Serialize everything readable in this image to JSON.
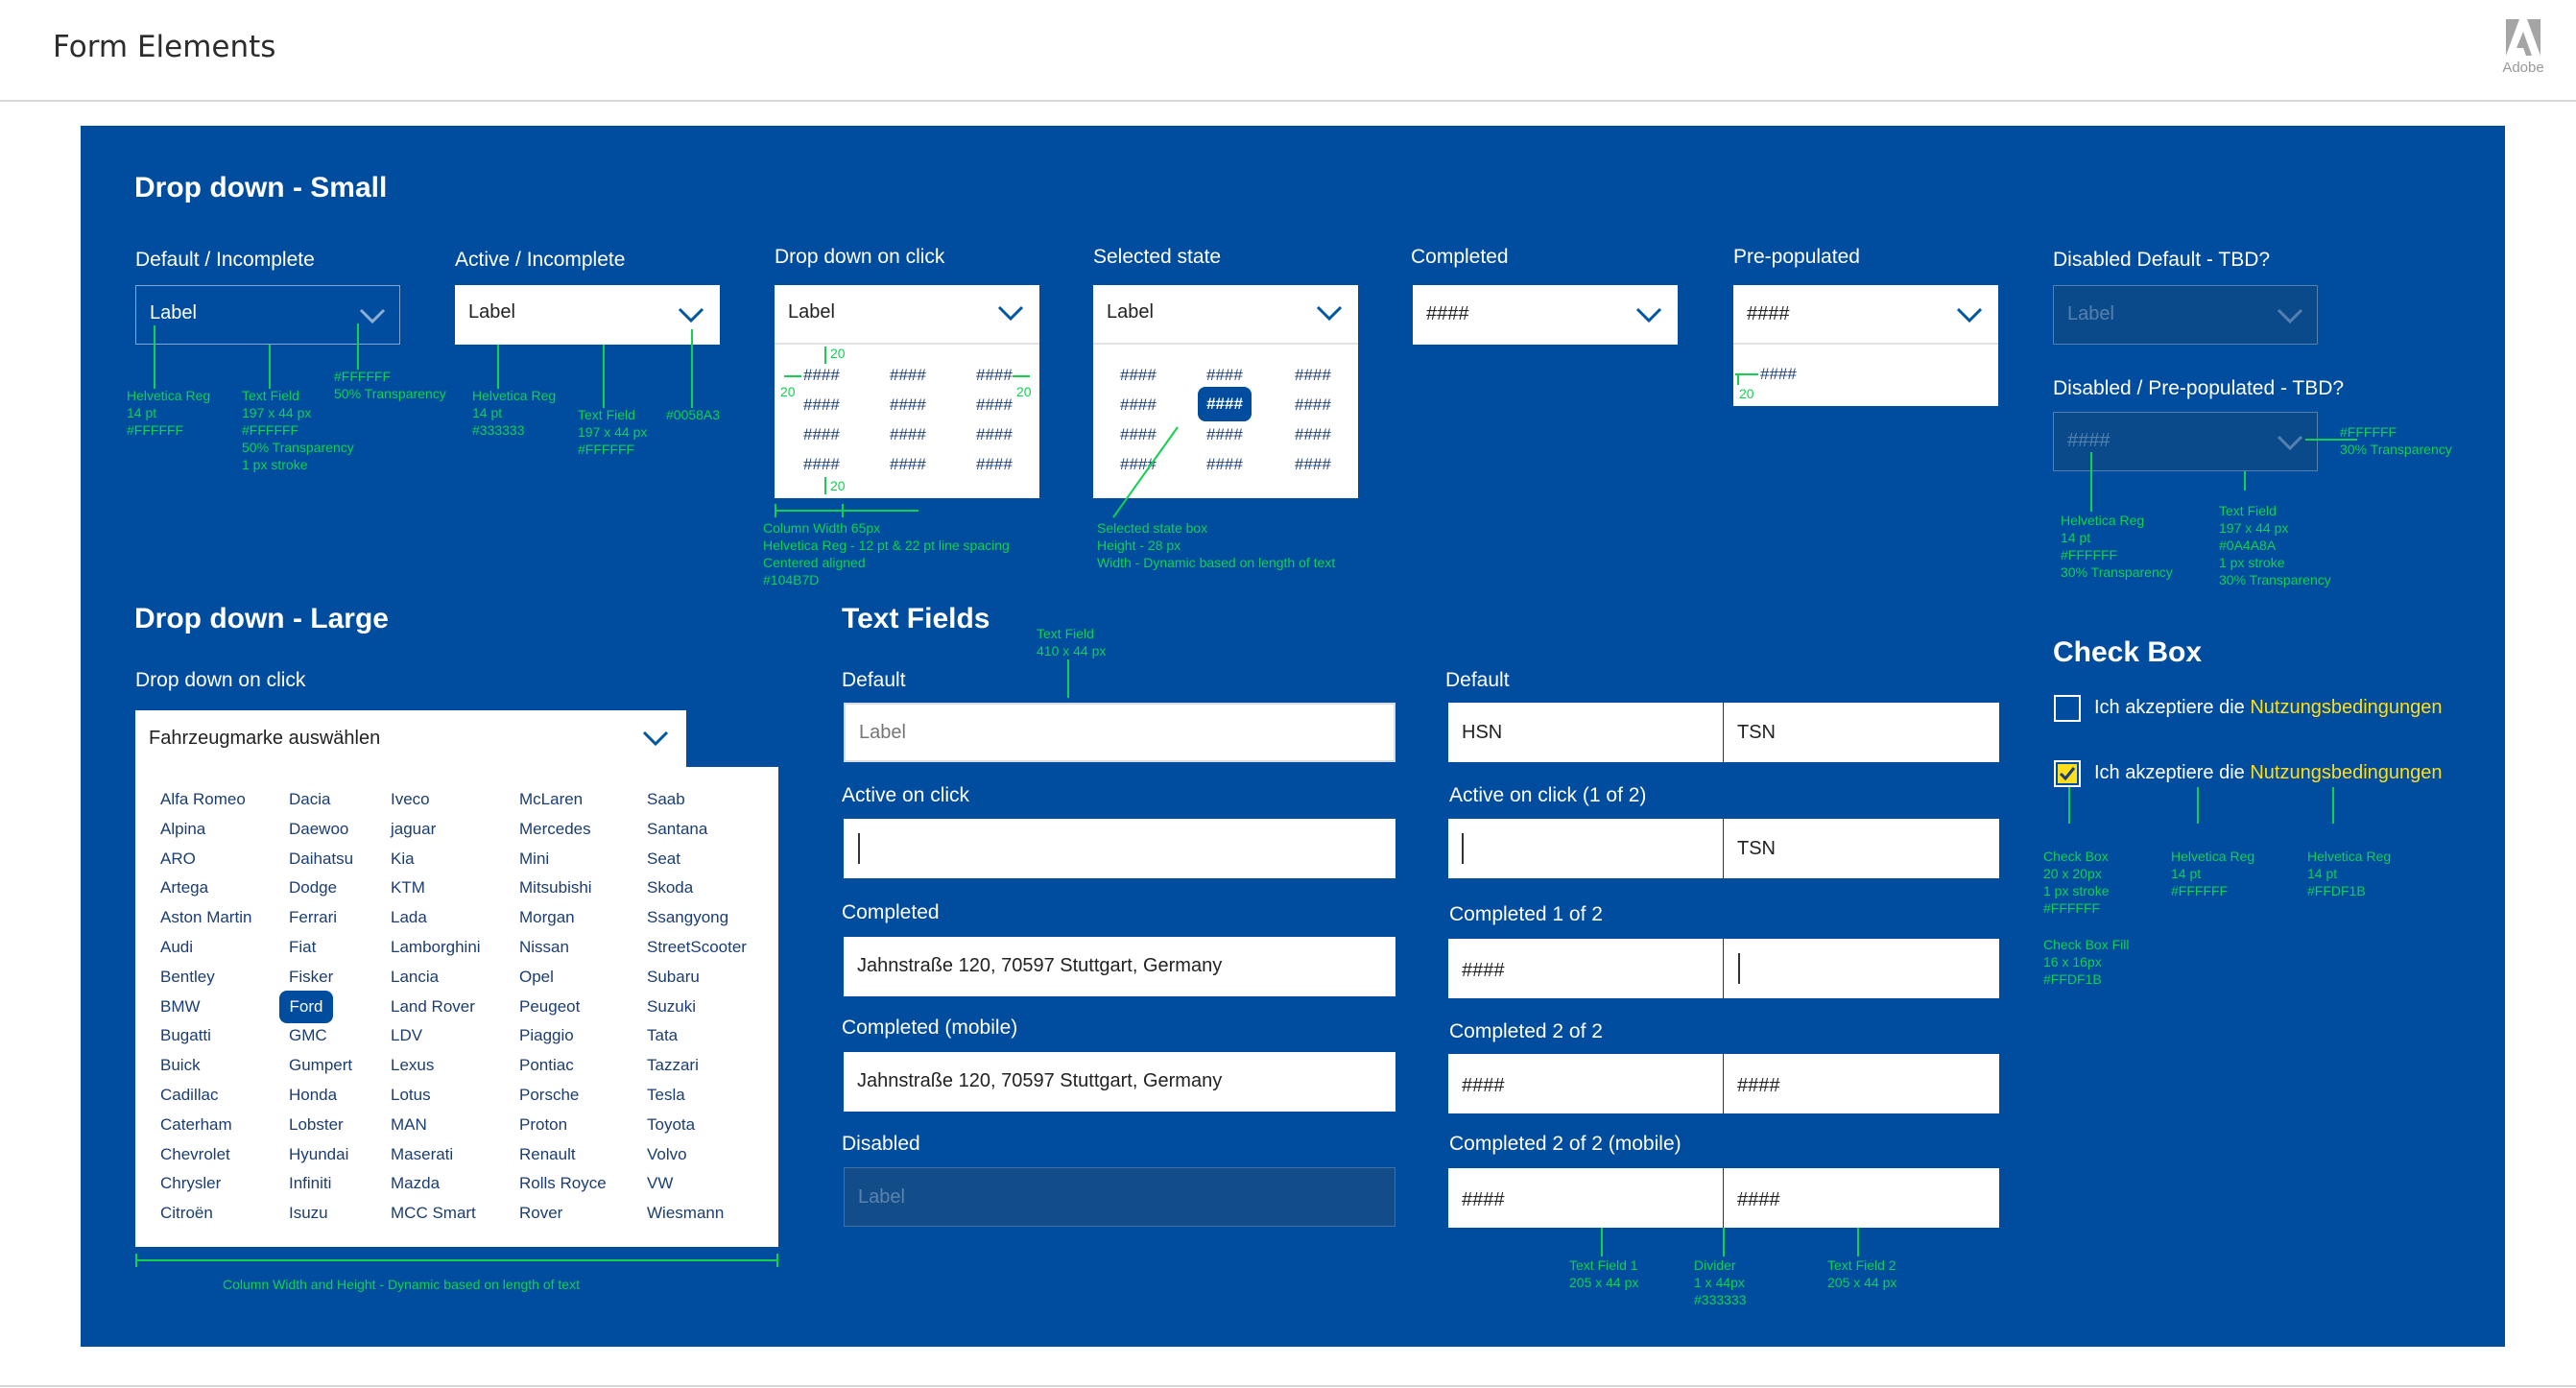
{
  "header": {
    "title": "Form Elements",
    "logo_label": "Adobe"
  },
  "colors": {
    "panel": "#004C9E",
    "accent_yellow": "#FFDF1B",
    "annotation": "#11D14F",
    "selected": "#104B7D"
  },
  "dropdown_small": {
    "title": "Drop down - Small",
    "default": {
      "heading": "Default / Incomplete",
      "value": "Label"
    },
    "active": {
      "heading": "Active / Incomplete",
      "value": "Label"
    },
    "onclick": {
      "heading": "Drop down on click",
      "value": "Label",
      "cells": [
        "####",
        "####",
        "####",
        "####",
        "####",
        "####",
        "####",
        "####",
        "####",
        "####",
        "####",
        "####"
      ]
    },
    "selected": {
      "heading": "Selected state",
      "value": "Label",
      "cells": [
        "####",
        "####",
        "####",
        "####",
        "####",
        "####",
        "####",
        "####",
        "####",
        "####",
        "####",
        "####"
      ]
    },
    "completed": {
      "heading": "Completed",
      "value": "####"
    },
    "prepopulated": {
      "heading": "Pre-populated",
      "value": "####",
      "option": "####"
    },
    "disabled_default": {
      "heading": "Disabled Default - TBD?",
      "value": "Label"
    },
    "disabled_prepop": {
      "heading": "Disabled / Pre-populated - TBD?",
      "value": "####"
    }
  },
  "dropdown_large": {
    "title": "Drop down - Large",
    "heading": "Drop down on click",
    "value": "Fahrzeugmarke auswählen",
    "selected_brand": "Ford",
    "columns": [
      [
        "Alfa Romeo",
        "Alpina",
        "ARO",
        "Artega",
        "Aston Martin",
        "Audi",
        "Bentley",
        "BMW",
        "Bugatti",
        "Buick",
        "Cadillac",
        "Caterham",
        "Chevrolet",
        "Chrysler",
        "Citroën"
      ],
      [
        "Dacia",
        "Daewoo",
        "Daihatsu",
        "Dodge",
        "Ferrari",
        "Fiat",
        "Fisker",
        "Ford",
        "GMC",
        "Gumpert",
        "Honda",
        "Lobster",
        "Hyundai",
        "Infiniti",
        "Isuzu"
      ],
      [
        "Iveco",
        "jaguar",
        "Kia",
        "KTM",
        "Lada",
        "Lamborghini",
        "Lancia",
        "Land Rover",
        "LDV",
        "Lexus",
        "Lotus",
        "MAN",
        "Maserati",
        "Mazda",
        "MCC Smart"
      ],
      [
        "McLaren",
        "Mercedes",
        "Mini",
        "Mitsubishi",
        "Morgan",
        "Nissan",
        "Opel",
        "Peugeot",
        "Piaggio",
        "Pontiac",
        "Porsche",
        "Proton",
        "Renault",
        "Rolls Royce",
        "Rover"
      ],
      [
        "Saab",
        "Santana",
        "Seat",
        "Skoda",
        "Ssangyong",
        "StreetScooter",
        "Subaru",
        "Suzuki",
        "Tata",
        "Tazzari",
        "Tesla",
        "Toyota",
        "Volvo",
        "VW",
        "Wiesmann"
      ]
    ],
    "note": "Column Width and Height - Dynamic based on length of text"
  },
  "text_fields": {
    "title": "Text Fields",
    "default": {
      "heading": "Default",
      "placeholder": "Label"
    },
    "active": {
      "heading": "Active on click"
    },
    "completed": {
      "heading": "Completed",
      "value": "Jahnstraße 120, 70597 Stuttgart, Germany"
    },
    "completed_mobile": {
      "heading": "Completed (mobile)",
      "value": "Jahnstraße 120, 70597 Stuttgart, Germany"
    },
    "disabled": {
      "heading": "Disabled",
      "placeholder": "Label"
    },
    "split": {
      "default": {
        "heading": "Default",
        "left": "HSN",
        "right": "TSN"
      },
      "active": {
        "heading": "Active on click (1 of 2)",
        "right": "TSN"
      },
      "completed1": {
        "heading": "Completed 1 of 2",
        "left": "####"
      },
      "completed2": {
        "heading": "Completed 2 of 2",
        "left": "####",
        "right": "####"
      },
      "completed2m": {
        "heading": "Completed 2 of 2 (mobile)",
        "left": "####",
        "right": "####"
      }
    }
  },
  "checkbox": {
    "title": "Check Box",
    "label_prefix": "Ich akzeptiere die ",
    "label_link": "Nutzungsbedingungen"
  },
  "annotations": {
    "def_font": "Helvetica Reg\n14 pt\n#FFFFFF",
    "def_field": "Text Field\n197 x 44 px\n#FFFFFF\n50% Transparency\n1 px stroke",
    "def_chev": "#FFFFFF\n50% Transparency",
    "act_font": "Helvetica Reg\n14 pt\n#333333",
    "act_field": "Text Field\n197 x 44 px\n#FFFFFF",
    "act_chev": "#0058A3",
    "col": "Column Width 65px\nHelvetica Reg - 12 pt & 22 pt line spacing\nCentered aligned\n#104B7D",
    "sel": "Selected state box\nHeight - 28 px\nWidth - Dynamic based on length of text",
    "dis_chev": "#FFFFFF\n30% Transparency",
    "dis_font": "Helvetica Reg\n14 pt\n#FFFFFF\n30% Transparency",
    "dis_field": "Text Field\n197 x 44 px\n#0A4A8A\n1 px stroke\n30% Transparency",
    "tf_size": "Text Field\n410 x 44 px",
    "tf1": "Text Field 1\n205 x 44 px",
    "divider": "Divider\n1 x 44px\n#333333",
    "tf2": "Text Field 2\n205 x 44 px",
    "cb_box": "Check Box\n20 x 20px\n1 px stroke\n#FFFFFF",
    "cb_font": "Helvetica Reg\n14 pt\n#FFFFFF",
    "cb_link": "Helvetica Reg\n14 pt\n#FFDF1B",
    "cb_fill": "Check Box Fill\n16 x 16px\n#FFDF1B",
    "num20": "20"
  }
}
